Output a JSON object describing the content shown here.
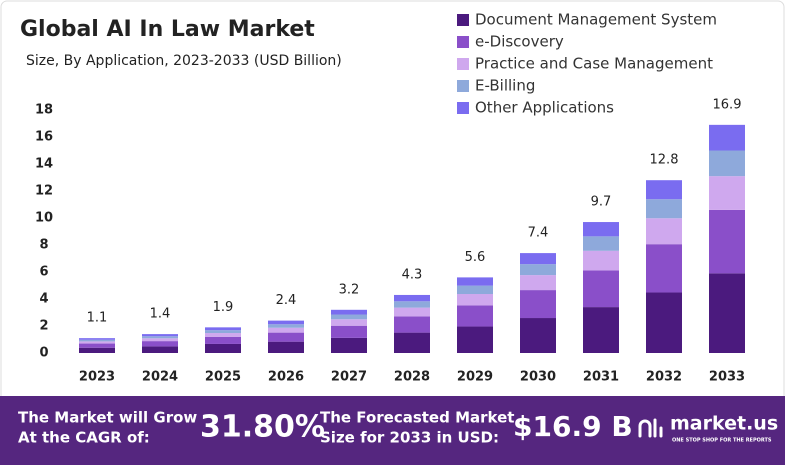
{
  "chart_data": {
    "type": "stacked_bar",
    "title": "Global AI In Law Market",
    "subtitle": "Size, By Application, 2023-2033 (USD Billion)",
    "categories": [
      "2023",
      "2024",
      "2025",
      "2026",
      "2027",
      "2028",
      "2029",
      "2030",
      "2031",
      "2032",
      "2033"
    ],
    "series": [
      {
        "name": "Document Management System",
        "color": "#4b1a7e",
        "values": [
          0.39,
          0.49,
          0.67,
          0.84,
          1.12,
          1.51,
          1.96,
          2.59,
          3.4,
          4.48,
          5.9
        ]
      },
      {
        "name": "e-Discovery",
        "color": "#8a4fc9",
        "values": [
          0.31,
          0.39,
          0.53,
          0.67,
          0.9,
          1.2,
          1.57,
          2.07,
          2.72,
          3.58,
          4.7
        ]
      },
      {
        "name": "Practice and Case Management",
        "color": "#cfa8ee",
        "values": [
          0.16,
          0.21,
          0.28,
          0.36,
          0.48,
          0.65,
          0.84,
          1.11,
          1.45,
          1.92,
          2.5
        ]
      },
      {
        "name": "E-Billing",
        "color": "#8ea9db",
        "values": [
          0.12,
          0.15,
          0.21,
          0.26,
          0.35,
          0.47,
          0.62,
          0.81,
          1.07,
          1.41,
          1.9
        ]
      },
      {
        "name": "Other Applications",
        "color": "#7a6cf0",
        "values": [
          0.12,
          0.16,
          0.21,
          0.27,
          0.35,
          0.47,
          0.61,
          0.82,
          1.06,
          1.41,
          1.9
        ]
      }
    ],
    "totals": [
      1.1,
      1.4,
      1.9,
      2.4,
      3.2,
      4.3,
      5.6,
      7.4,
      9.7,
      12.8,
      16.9
    ],
    "ylim": [
      0,
      18
    ],
    "yticks": [
      0,
      2,
      4,
      6,
      8,
      10,
      12,
      14,
      16,
      18
    ],
    "grid": false
  },
  "footer": {
    "cagr_text_1": "The Market will Grow",
    "cagr_text_2": "At the CAGR of:",
    "cagr": "31.80%",
    "forecast_text_1": "The Forecasted Market",
    "forecast_text_2": "Size for 2033 in USD:",
    "forecast": "$16.9 B",
    "brand": "market.us",
    "tagline": "ONE STOP SHOP FOR THE REPORTS"
  }
}
